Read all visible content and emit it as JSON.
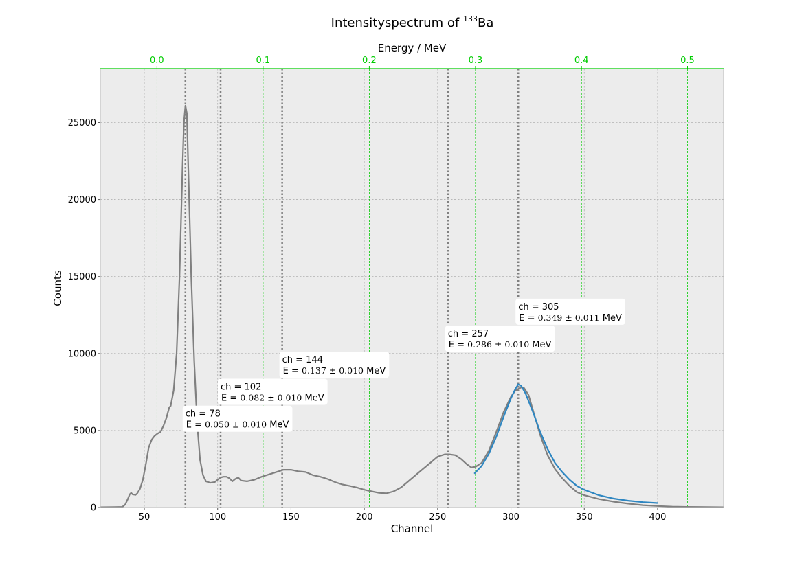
{
  "chart_data": {
    "type": "line",
    "title": "Intensityspectrum of",
    "title_superscript": "133",
    "title_element": "Ba",
    "xlabel": "Channel",
    "ylabel": "Counts",
    "x2label": "Energy / MeV",
    "xlim": [
      20,
      445
    ],
    "ylim": [
      0,
      28500
    ],
    "xticks": [
      50,
      100,
      150,
      200,
      250,
      300,
      350,
      400
    ],
    "yticks": [
      0,
      5000,
      10000,
      15000,
      20000,
      25000
    ],
    "secondary_axis": {
      "label": "Energy / MeV",
      "color": "#00cc00",
      "ticks": [
        {
          "label": "0.0",
          "channel": 58.6
        },
        {
          "label": "0.1",
          "channel": 131.0
        },
        {
          "label": "0.2",
          "channel": 203.4
        },
        {
          "label": "0.3",
          "channel": 275.8
        },
        {
          "label": "0.4",
          "channel": 348.1
        },
        {
          "label": "0.5",
          "channel": 420.4
        }
      ]
    },
    "grid": true,
    "background": "#ececec",
    "series": [
      {
        "color": "#808080",
        "points": [
          [
            20,
            20
          ],
          [
            30,
            30
          ],
          [
            35,
            40
          ],
          [
            37,
            200
          ],
          [
            39,
            600
          ],
          [
            40,
            850
          ],
          [
            41,
            950
          ],
          [
            42,
            850
          ],
          [
            44,
            820
          ],
          [
            45,
            900
          ],
          [
            47,
            1200
          ],
          [
            49,
            1800
          ],
          [
            51,
            2800
          ],
          [
            53,
            3900
          ],
          [
            55,
            4400
          ],
          [
            57,
            4650
          ],
          [
            59,
            4800
          ],
          [
            61,
            4900
          ],
          [
            63,
            5300
          ],
          [
            65,
            5800
          ],
          [
            67,
            6500
          ],
          [
            68,
            6600
          ],
          [
            70,
            7600
          ],
          [
            72,
            10000
          ],
          [
            74,
            15000
          ],
          [
            76,
            22000
          ],
          [
            77,
            25000
          ],
          [
            78,
            26100
          ],
          [
            79,
            25600
          ],
          [
            80,
            22000
          ],
          [
            82,
            15000
          ],
          [
            84,
            9500
          ],
          [
            86,
            5500
          ],
          [
            88,
            3100
          ],
          [
            90,
            2100
          ],
          [
            92,
            1700
          ],
          [
            95,
            1600
          ],
          [
            98,
            1650
          ],
          [
            100,
            1800
          ],
          [
            102,
            1950
          ],
          [
            104,
            2000
          ],
          [
            106,
            2000
          ],
          [
            108,
            1900
          ],
          [
            110,
            1700
          ],
          [
            112,
            1850
          ],
          [
            114,
            1950
          ],
          [
            116,
            1750
          ],
          [
            120,
            1700
          ],
          [
            125,
            1800
          ],
          [
            130,
            2000
          ],
          [
            135,
            2150
          ],
          [
            140,
            2300
          ],
          [
            145,
            2450
          ],
          [
            150,
            2450
          ],
          [
            155,
            2350
          ],
          [
            160,
            2300
          ],
          [
            165,
            2100
          ],
          [
            170,
            2000
          ],
          [
            175,
            1850
          ],
          [
            180,
            1650
          ],
          [
            185,
            1500
          ],
          [
            190,
            1400
          ],
          [
            195,
            1300
          ],
          [
            200,
            1150
          ],
          [
            205,
            1050
          ],
          [
            210,
            950
          ],
          [
            215,
            920
          ],
          [
            220,
            1050
          ],
          [
            225,
            1300
          ],
          [
            230,
            1700
          ],
          [
            235,
            2100
          ],
          [
            240,
            2500
          ],
          [
            245,
            2900
          ],
          [
            250,
            3300
          ],
          [
            255,
            3450
          ],
          [
            258,
            3450
          ],
          [
            262,
            3400
          ],
          [
            266,
            3150
          ],
          [
            270,
            2800
          ],
          [
            273,
            2600
          ],
          [
            276,
            2650
          ],
          [
            280,
            2900
          ],
          [
            285,
            3700
          ],
          [
            290,
            4900
          ],
          [
            295,
            6200
          ],
          [
            300,
            7200
          ],
          [
            303,
            7600
          ],
          [
            305,
            7700
          ],
          [
            307,
            7800
          ],
          [
            309,
            7750
          ],
          [
            312,
            7300
          ],
          [
            316,
            6000
          ],
          [
            320,
            4700
          ],
          [
            325,
            3400
          ],
          [
            330,
            2500
          ],
          [
            335,
            1900
          ],
          [
            340,
            1400
          ],
          [
            345,
            1000
          ],
          [
            350,
            800
          ],
          [
            360,
            550
          ],
          [
            370,
            380
          ],
          [
            380,
            250
          ],
          [
            390,
            150
          ],
          [
            400,
            100
          ],
          [
            410,
            60
          ],
          [
            420,
            40
          ],
          [
            445,
            20
          ]
        ]
      },
      {
        "color": "#2e86c1",
        "points": [
          [
            275,
            2200
          ],
          [
            280,
            2700
          ],
          [
            285,
            3500
          ],
          [
            290,
            4600
          ],
          [
            295,
            5900
          ],
          [
            300,
            7100
          ],
          [
            303,
            7700
          ],
          [
            305,
            8000
          ],
          [
            307,
            7900
          ],
          [
            310,
            7400
          ],
          [
            315,
            6200
          ],
          [
            320,
            4900
          ],
          [
            325,
            3800
          ],
          [
            330,
            2900
          ],
          [
            335,
            2300
          ],
          [
            340,
            1800
          ],
          [
            345,
            1400
          ],
          [
            350,
            1150
          ],
          [
            360,
            800
          ],
          [
            370,
            580
          ],
          [
            380,
            440
          ],
          [
            390,
            350
          ],
          [
            400,
            290
          ]
        ]
      }
    ],
    "peak_markers": [
      78,
      102,
      144,
      257,
      305
    ],
    "annotations": [
      {
        "channel": 78,
        "y": 5900,
        "ch_text": "ch = 78",
        "e_prefix": "E  = ",
        "e_value": "0.050 ± 0.010",
        "e_unit": "MeV"
      },
      {
        "channel": 102,
        "y": 7650,
        "ch_text": "ch = 102",
        "e_prefix": "E  = ",
        "e_value": "0.082 ± 0.010",
        "e_unit": "MeV"
      },
      {
        "channel": 144,
        "y": 9400,
        "ch_text": "ch = 144",
        "e_prefix": "E  = ",
        "e_value": "0.137 ± 0.010",
        "e_unit": "MeV"
      },
      {
        "channel": 257,
        "y": 11100,
        "ch_text": "ch = 257",
        "e_prefix": "E  = ",
        "e_value": "0.286 ± 0.010",
        "e_unit": "MeV"
      },
      {
        "channel": 305,
        "y": 12850,
        "ch_text": "ch = 305",
        "e_prefix": "E  = ",
        "e_value": "0.349 ± 0.011",
        "e_unit": "MeV"
      }
    ]
  }
}
